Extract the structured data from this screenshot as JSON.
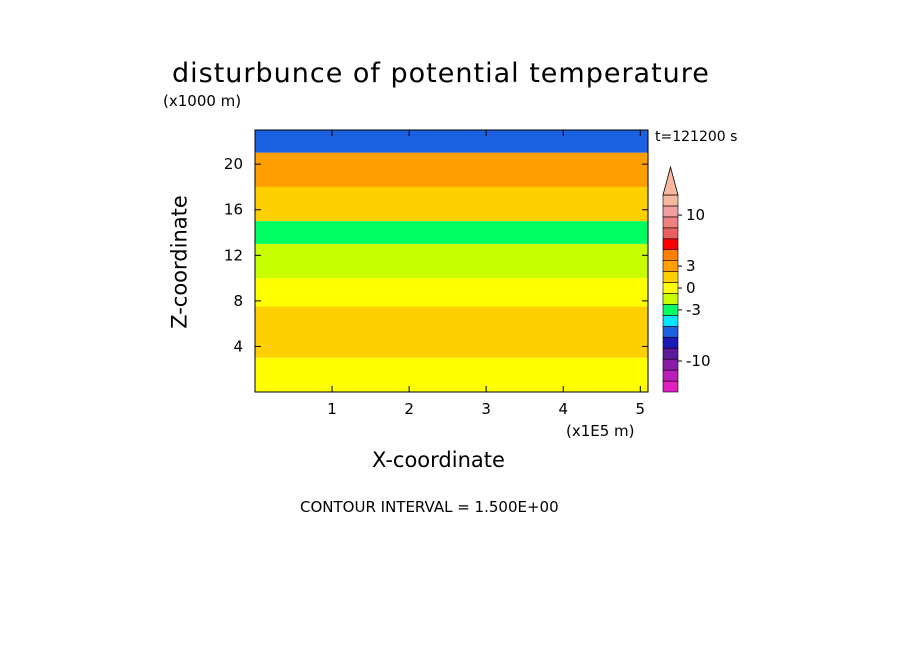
{
  "chart_data": {
    "type": "heatmap",
    "title": "disturbunce of potential temperature",
    "time_label": "t=121200 s",
    "contour_interval": "CONTOUR INTERVAL = 1.500E+00",
    "x_axis": {
      "label": "X-coordinate",
      "unit": "(x1E5 m)",
      "range": [
        0,
        5.1
      ],
      "ticks": [
        1,
        2,
        3,
        4,
        5
      ],
      "tick_labels": [
        "1",
        "2",
        "3",
        "4",
        "5"
      ]
    },
    "y_axis": {
      "label": "Z-coordinate",
      "unit": "(x1000 m)",
      "range": [
        0,
        23
      ],
      "ticks": [
        4,
        8,
        12,
        16,
        20
      ],
      "tick_labels": [
        "4",
        "8",
        "12",
        "16",
        "20"
      ]
    },
    "colorbar": {
      "levels": [
        -13.5,
        -12,
        -10.5,
        -9,
        -7.5,
        -6,
        -4.5,
        -3,
        -1.5,
        0,
        1.5,
        3,
        4.5,
        6,
        7.5,
        9,
        10.5,
        12,
        13.5
      ],
      "colors": [
        "#e020c0",
        "#b820b8",
        "#8a1aa8",
        "#5a1a9a",
        "#1a1ab8",
        "#1a60e0",
        "#00e6ff",
        "#00ff60",
        "#c8ff00",
        "#ffff00",
        "#ffd000",
        "#ffa000",
        "#ff8000",
        "#ff0000",
        "#e86060",
        "#f08080",
        "#f0a0a0",
        "#f8b8a0"
      ],
      "tick_values": [
        10,
        3,
        0,
        -3,
        -10
      ],
      "tick_labels": [
        "10",
        "3",
        "0",
        "-3",
        "-10"
      ]
    },
    "rows": [
      {
        "z_range": [
          21,
          23
        ],
        "value": -6.0
      },
      {
        "z_range": [
          18,
          21
        ],
        "value": 4.0
      },
      {
        "z_range": [
          15,
          18
        ],
        "value": 1.5
      },
      {
        "z_range": [
          13,
          15
        ],
        "value": -2.0
      },
      {
        "z_range": [
          10,
          13
        ],
        "value": -1.0
      },
      {
        "z_range": [
          9,
          10
        ],
        "value": 0.5
      },
      {
        "z_range": [
          7.5,
          9
        ],
        "value": 0.8
      },
      {
        "z_range": [
          3,
          7.5
        ],
        "value": 2.0
      },
      {
        "z_range": [
          0,
          3
        ],
        "value": 0.5
      }
    ]
  }
}
